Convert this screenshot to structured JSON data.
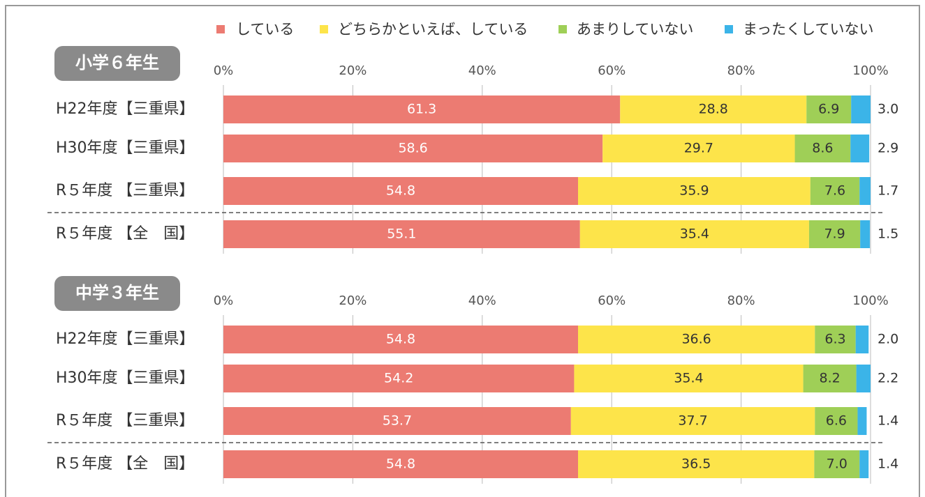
{
  "chart_data": [
    {
      "type": "stacked-bar-horizontal",
      "title": "小学６年生",
      "categories": [
        "H22年度【三重県】",
        "H30年度【三重県】",
        "R５年度 【三重県】",
        "R５年度 【全　国】"
      ],
      "series": [
        {
          "name": "している",
          "color": "#ec7b72",
          "values": [
            61.3,
            58.6,
            54.8,
            55.1
          ],
          "value_labels": [
            "61.3",
            "58.6",
            "54.8",
            "55.1"
          ]
        },
        {
          "name": "どちらかといえば、している",
          "color": "#fde44a",
          "values": [
            28.8,
            29.7,
            35.9,
            35.4
          ],
          "value_labels": [
            "28.8",
            "29.7",
            "35.9",
            "35.4"
          ]
        },
        {
          "name": "あまりしていない",
          "color": "#9fcf57",
          "values": [
            6.9,
            8.6,
            7.6,
            7.9
          ],
          "value_labels": [
            "6.9",
            "8.6",
            "7.6",
            "7.9"
          ]
        },
        {
          "name": "まったくしていない",
          "color": "#3bb4e8",
          "values": [
            3.0,
            2.9,
            1.7,
            1.5
          ],
          "value_labels": [
            "3.0",
            "2.9",
            "1.7",
            "1.5"
          ]
        }
      ],
      "xlim": [
        0,
        100
      ],
      "xticks": [
        {
          "value": 0,
          "label": "0%"
        },
        {
          "value": 20,
          "label": "20%"
        },
        {
          "value": 40,
          "label": "40%"
        },
        {
          "value": 60,
          "label": "60%"
        },
        {
          "value": 80,
          "label": "80%"
        },
        {
          "value": 100,
          "label": "100%"
        }
      ],
      "grid": true,
      "legend": "top"
    },
    {
      "type": "stacked-bar-horizontal",
      "title": "中学３年生",
      "categories": [
        "H22年度【三重県】",
        "H30年度【三重県】",
        "R５年度 【三重県】",
        "R５年度 【全　国】"
      ],
      "series": [
        {
          "color": "#ec7b72",
          "values": [
            54.8,
            54.2,
            53.7,
            54.8
          ],
          "value_labels": [
            "54.8",
            "54.2",
            "53.7",
            "54.8"
          ]
        },
        {
          "color": "#fde44a",
          "values": [
            36.6,
            35.4,
            37.7,
            36.5
          ],
          "value_labels": [
            "36.6",
            "35.4",
            "37.7",
            "36.5"
          ]
        },
        {
          "color": "#9fcf57",
          "values": [
            6.3,
            8.2,
            6.6,
            7.0
          ],
          "value_labels": [
            "6.3",
            "8.2",
            "6.6",
            "7.0"
          ]
        },
        {
          "color": "#3bb4e8",
          "values": [
            2.0,
            2.2,
            1.4,
            1.4
          ],
          "value_labels": [
            "2.0",
            "2.2",
            "1.4",
            "1.4"
          ]
        }
      ],
      "xlim": [
        0,
        100
      ],
      "xticks": [
        {
          "value": 0,
          "label": "0%"
        },
        {
          "value": 20,
          "label": "20%"
        },
        {
          "value": 40,
          "label": "40%"
        },
        {
          "value": 60,
          "label": "60%"
        },
        {
          "value": 80,
          "label": "80%"
        },
        {
          "value": 100,
          "label": "100%"
        }
      ],
      "grid": true
    }
  ]
}
